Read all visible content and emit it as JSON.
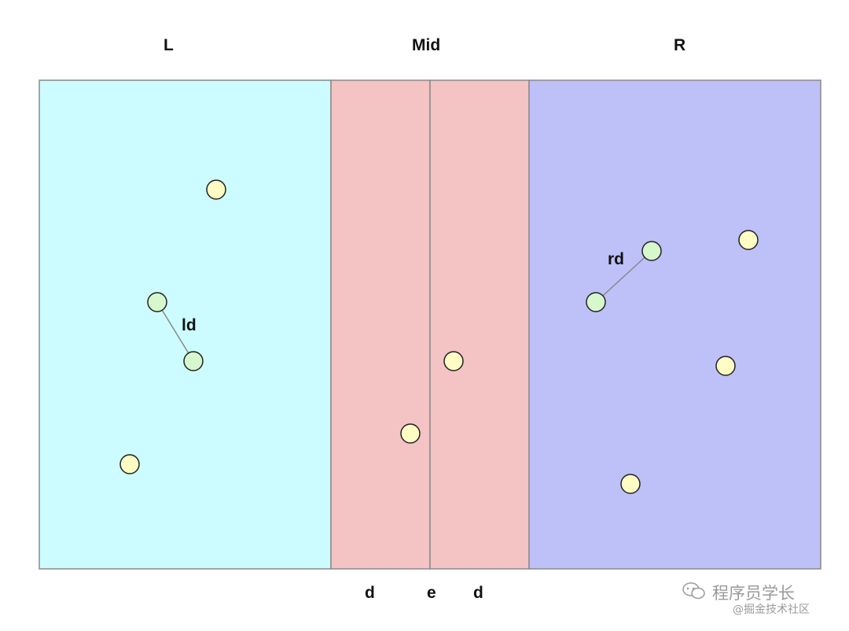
{
  "regions": {
    "left": {
      "label": "L",
      "color": "#ccfcff"
    },
    "mid": {
      "label": "Mid",
      "color": "#f4c3c3"
    },
    "right": {
      "label": "R",
      "color": "#bec0f8"
    }
  },
  "bottom_labels": {
    "d_left": "d",
    "e": "e",
    "d_right": "d"
  },
  "distance_labels": {
    "ld": "ld",
    "rd": "rd"
  },
  "point_colors": {
    "plain": "#fffcc4",
    "paired": "#d6f8cc"
  },
  "watermark": {
    "line1": "程序员学长",
    "line2": "@掘金技术社区"
  }
}
